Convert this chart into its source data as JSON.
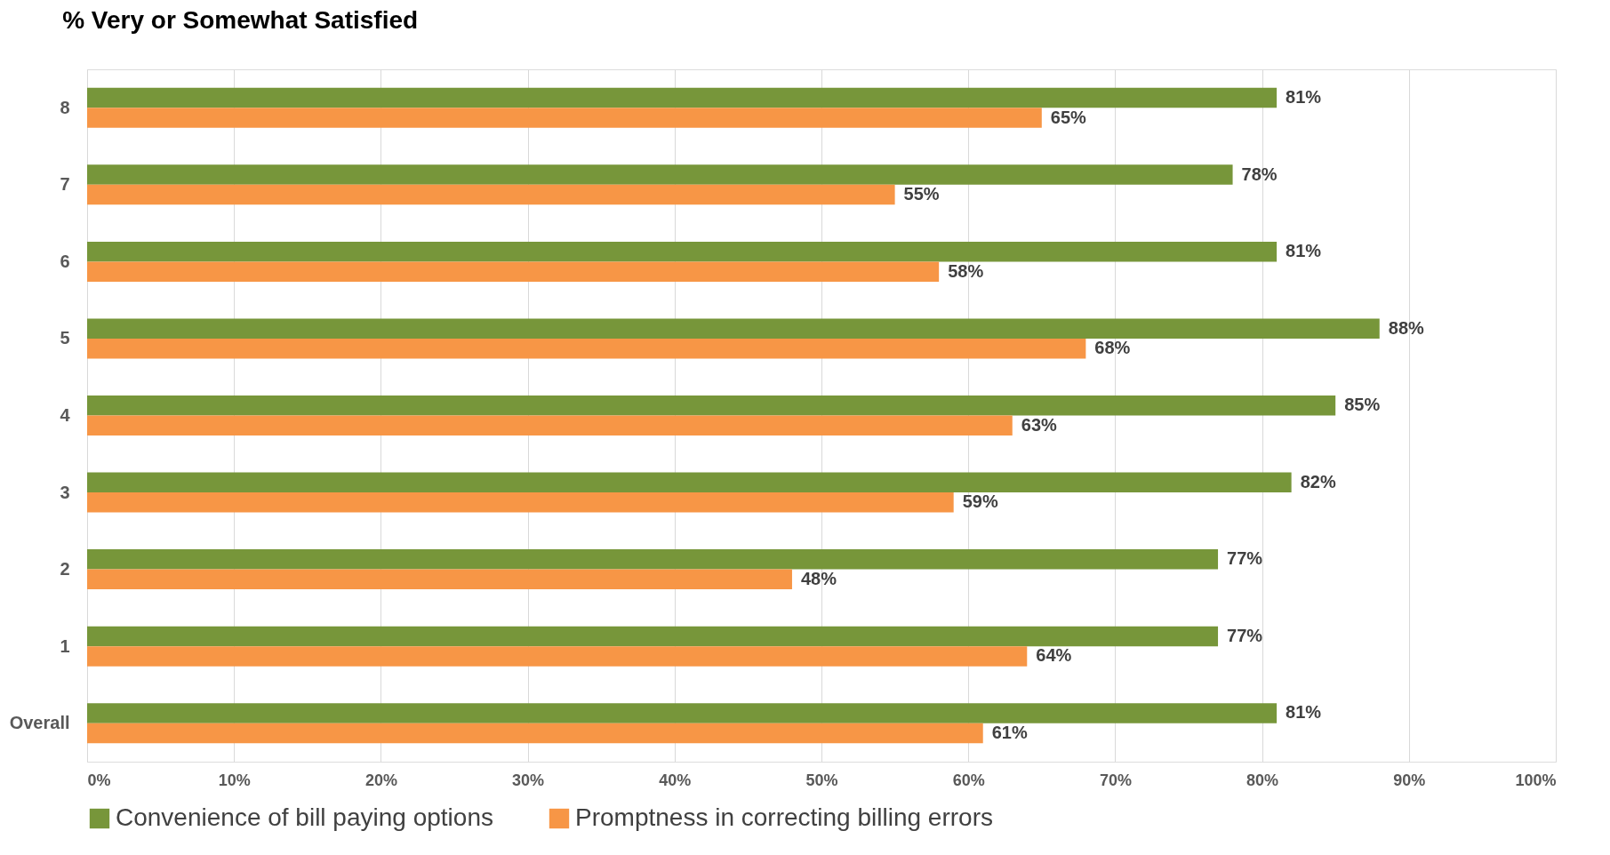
{
  "chart_data": {
    "type": "bar",
    "orientation": "horizontal",
    "title": "% Very or Somewhat Satisfied",
    "categories": [
      "8",
      "7",
      "6",
      "5",
      "4",
      "3",
      "2",
      "1",
      "Overall"
    ],
    "series": [
      {
        "name": "Convenience of bill paying options",
        "color": "#77963a",
        "values": [
          81,
          78,
          81,
          88,
          85,
          82,
          77,
          77,
          81
        ],
        "value_labels": [
          "81%",
          "78%",
          "81%",
          "88%",
          "85%",
          "82%",
          "77%",
          "77%",
          "81%"
        ]
      },
      {
        "name": "Promptness in correcting billing errors",
        "color": "#f79646",
        "values": [
          65,
          55,
          58,
          68,
          63,
          59,
          48,
          64,
          61
        ],
        "value_labels": [
          "65%",
          "55%",
          "58%",
          "68%",
          "63%",
          "59%",
          "48%",
          "64%",
          "61%"
        ]
      }
    ],
    "xlim": [
      0,
      100
    ],
    "xticks": [
      {
        "value": 0,
        "label": "0%"
      },
      {
        "value": 10,
        "label": "10%"
      },
      {
        "value": 20,
        "label": "20%"
      },
      {
        "value": 30,
        "label": "30%"
      },
      {
        "value": 40,
        "label": "40%"
      },
      {
        "value": 50,
        "label": "50%"
      },
      {
        "value": 60,
        "label": "60%"
      },
      {
        "value": 70,
        "label": "70%"
      },
      {
        "value": 80,
        "label": "80%"
      },
      {
        "value": 90,
        "label": "90%"
      },
      {
        "value": 100,
        "label": "100%"
      }
    ],
    "grid": "x",
    "legend": "bottom"
  }
}
